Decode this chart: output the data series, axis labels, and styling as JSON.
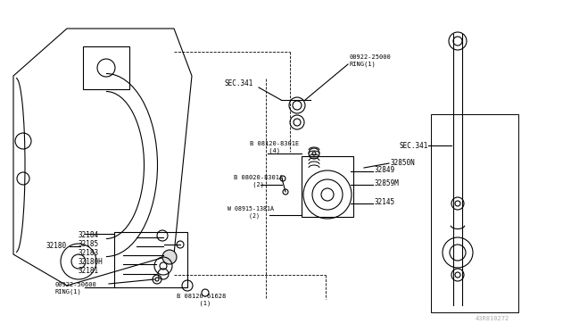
{
  "bg_color": "#ffffff",
  "line_color": "#000000",
  "text_color": "#000000",
  "gray_color": "#888888",
  "fig_width": 6.4,
  "fig_height": 3.72,
  "title_code": "43R810272",
  "labels": {
    "sec341_1": "SEC.341",
    "sec341_2": "SEC.341",
    "ring1_top": "00922-25000\nRING(1)",
    "ring1_bot": "00922-50600\nRING(1)",
    "b08120_8301E": "B 08120-8301E\n     (4)",
    "b08020_8301A": "B 08020-8301A\n     (2)",
    "w08915_1381A": "W 08915-1381A\n      (2)",
    "b08120_61628": "B 08120-61628\n      (1)",
    "p32849": "32849",
    "p32859M": "32859M",
    "p32145": "32145",
    "p32850N": "32850N",
    "p32184": "32184",
    "p32185": "32185",
    "p32183": "32183",
    "p32180H": "32180H",
    "p32181": "32181",
    "p32180": "32180"
  }
}
